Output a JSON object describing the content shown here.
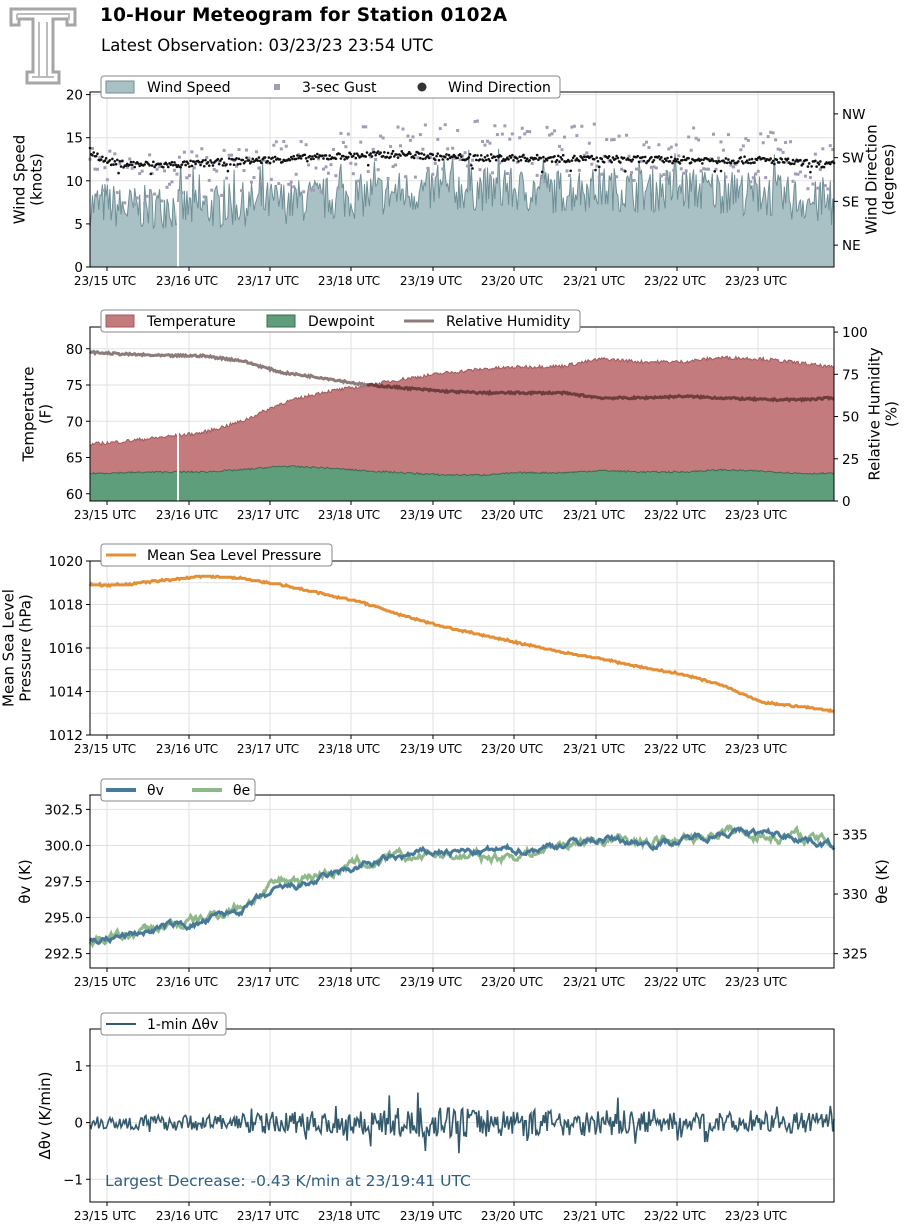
{
  "header": {
    "title": "10-Hour Meteogram for Station 0102A",
    "subtitle": "Latest Observation: 03/23/23 23:54 UTC",
    "logo_icon": "texas-tech-double-t-logo-icon"
  },
  "colors": {
    "wind_fill": "#a9c0c5",
    "wind_line": "#6f8f96",
    "gust": "#a39cb5",
    "direction": "#111111",
    "temperature_fill": "#c47b7d",
    "temperature_line": "#a0595c",
    "dewpoint_fill": "#5f9e7b",
    "dewpoint_line": "#3d6b50",
    "rh_line": "#8e7c7c",
    "rh_line_over_temp": "#6e3e3f",
    "pressure": "#e48f36",
    "theta_v": "#467a98",
    "theta_e": "#8fb98a",
    "dtheta": "#33596c",
    "annotation": "#2f5f7f",
    "grid": "#e2e2e2"
  },
  "shared_x": {
    "tick_labels": [
      "23/15 UTC",
      "23/16 UTC",
      "23/17 UTC",
      "23/18 UTC",
      "23/19 UTC",
      "23/20 UTC",
      "23/21 UTC",
      "23/22 UTC",
      "23/23 UTC"
    ],
    "range_hours": [
      14.6,
      23.9
    ]
  },
  "chart_data": [
    {
      "type": "area",
      "panel": "wind",
      "ylabel": [
        "Wind Speed",
        "(knots)"
      ],
      "y2label": [
        "Wind Direction",
        "(degrees)"
      ],
      "ylim": [
        0,
        20.3
      ],
      "yticks": [
        "0",
        "5",
        "10",
        "15",
        "20"
      ],
      "y2ticks": [
        "NE",
        "SE",
        "SW",
        "NW"
      ],
      "y2_range_degrees": [
        0,
        360
      ],
      "legend": [
        "Wind Speed",
        "3-sec Gust",
        "Wind Direction"
      ],
      "x_hours": [
        14.6,
        14.8,
        15.0,
        15.5,
        15.9,
        16.5,
        17.0,
        17.5,
        18.0,
        18.5,
        19.0,
        19.5,
        20.0,
        20.5,
        21.0,
        21.5,
        22.0,
        22.5,
        23.0,
        23.5,
        23.9
      ],
      "series": [
        {
          "name": "Wind Speed",
          "values": [
            6.8,
            7.2,
            6.5,
            6.8,
            6.5,
            7.0,
            7.3,
            7.6,
            8.0,
            8.4,
            8.7,
            8.8,
            8.6,
            8.5,
            8.9,
            8.6,
            8.8,
            8.5,
            8.2,
            7.5,
            6.8
          ]
        },
        {
          "name": "3-sec Gust",
          "values": [
            10.5,
            11.0,
            10.2,
            10.8,
            10.6,
            11.2,
            11.6,
            12.0,
            13.0,
            13.5,
            14.0,
            13.8,
            13.2,
            13.0,
            13.6,
            13.0,
            13.4,
            13.2,
            12.8,
            12.0,
            11.0
          ]
        },
        {
          "name": "Wind Direction",
          "values": [
            238,
            218,
            212,
            210,
            212,
            218,
            222,
            226,
            230,
            232,
            226,
            225,
            224,
            223,
            222,
            221,
            220,
            220,
            220,
            214,
            210
          ]
        }
      ]
    },
    {
      "type": "area",
      "panel": "temperature",
      "ylabel": [
        "Temperature",
        "(F)"
      ],
      "y2label": [
        "Relative Humidity",
        "(%)"
      ],
      "ylim": [
        59,
        83
      ],
      "y2lim": [
        0,
        103
      ],
      "yticks": [
        "60",
        "65",
        "70",
        "75",
        "80"
      ],
      "y2ticks": [
        "0",
        "25",
        "50",
        "75",
        "100"
      ],
      "legend": [
        "Temperature",
        "Dewpoint",
        "Relative Humidity"
      ],
      "x_hours": [
        14.6,
        15.0,
        15.5,
        16.0,
        16.5,
        17.0,
        17.5,
        18.0,
        18.5,
        19.0,
        19.5,
        20.0,
        20.5,
        21.0,
        21.5,
        22.0,
        22.5,
        23.0,
        23.5,
        23.9
      ],
      "series": [
        {
          "name": "Temperature",
          "values": [
            66.8,
            67.2,
            67.8,
            68.4,
            70.0,
            72.5,
            74.0,
            74.8,
            75.8,
            76.6,
            77.2,
            77.5,
            77.6,
            78.6,
            78.2,
            78.2,
            78.8,
            78.6,
            78.0,
            77.4
          ]
        },
        {
          "name": "Dewpoint",
          "values": [
            62.8,
            62.9,
            63.0,
            63.0,
            63.3,
            63.8,
            63.6,
            63.2,
            62.9,
            62.6,
            62.6,
            62.9,
            62.9,
            63.2,
            63.0,
            63.0,
            63.3,
            63.1,
            62.8,
            62.8
          ]
        },
        {
          "name": "Relative Humidity",
          "values": [
            88,
            87,
            86,
            86,
            83,
            76,
            73,
            69,
            67,
            65,
            64,
            64,
            64,
            61,
            61,
            62,
            61,
            60,
            60,
            61
          ]
        }
      ]
    },
    {
      "type": "line",
      "panel": "pressure",
      "ylabel": [
        "Mean Sea Level",
        "Pressure (hPa)"
      ],
      "ylim": [
        1012,
        1020
      ],
      "yticks": [
        "1012",
        "1014",
        "1016",
        "1018",
        "1020"
      ],
      "legend": [
        "Mean Sea Level Pressure"
      ],
      "x_hours": [
        14.6,
        15.0,
        15.5,
        16.0,
        16.5,
        17.0,
        17.5,
        18.0,
        18.5,
        19.0,
        19.5,
        20.0,
        20.5,
        21.0,
        21.5,
        22.0,
        22.5,
        23.0,
        23.5,
        23.9
      ],
      "series": [
        {
          "name": "Mean Sea Level Pressure",
          "values": [
            1018.9,
            1018.9,
            1019.1,
            1019.3,
            1019.2,
            1018.9,
            1018.5,
            1018.1,
            1017.5,
            1017.0,
            1016.6,
            1016.2,
            1015.8,
            1015.5,
            1015.1,
            1014.8,
            1014.3,
            1013.5,
            1013.3,
            1013.1
          ]
        }
      ]
    },
    {
      "type": "line",
      "panel": "theta",
      "ylabel": [
        "θv (K)"
      ],
      "y2label": [
        "θe (K)"
      ],
      "ylim": [
        291.5,
        303.5
      ],
      "y2lim": [
        323.8,
        338.3
      ],
      "yticks": [
        "292.5",
        "295.0",
        "297.5",
        "300.0",
        "302.5"
      ],
      "y2ticks": [
        "325",
        "330",
        "335"
      ],
      "legend": [
        "θv",
        "θe"
      ],
      "x_hours": [
        14.6,
        15.0,
        15.5,
        16.0,
        16.5,
        17.0,
        17.5,
        18.0,
        18.5,
        19.0,
        19.5,
        20.0,
        20.5,
        21.0,
        21.5,
        22.0,
        22.5,
        23.0,
        23.5,
        23.9
      ],
      "series": [
        {
          "name": "θv",
          "values": [
            293.3,
            293.7,
            294.3,
            294.6,
            295.6,
            296.9,
            297.6,
            298.6,
            299.2,
            299.6,
            299.5,
            299.7,
            300.1,
            300.5,
            300.2,
            300.3,
            301.0,
            300.8,
            300.6,
            300.0
          ]
        },
        {
          "name": "θe",
          "values": [
            325.8,
            326.3,
            327.2,
            327.8,
            329.2,
            331.0,
            331.8,
            332.5,
            332.9,
            333.4,
            333.0,
            333.4,
            334.2,
            334.6,
            334.3,
            334.4,
            335.4,
            335.0,
            334.8,
            334.2
          ]
        }
      ]
    },
    {
      "type": "line",
      "panel": "dtheta",
      "ylabel": [
        "Δθv (K/min)"
      ],
      "ylim": [
        -1.4,
        1.65
      ],
      "yticks": [
        "−1",
        "0",
        "1"
      ],
      "legend": [
        "1-min Δθv"
      ],
      "x_hours": [
        14.6,
        15.0,
        15.5,
        16.0,
        16.5,
        17.0,
        17.5,
        18.0,
        18.5,
        19.0,
        19.5,
        20.0,
        20.5,
        21.0,
        21.5,
        22.0,
        22.5,
        23.0,
        23.5,
        23.9
      ],
      "series": [
        {
          "name": "1-min Δθv envelope",
          "values": [
            0.12,
            0.12,
            0.14,
            0.14,
            0.16,
            0.2,
            0.2,
            0.24,
            0.26,
            0.28,
            0.26,
            0.24,
            0.24,
            0.24,
            0.2,
            0.18,
            0.18,
            0.18,
            0.18,
            0.16
          ]
        }
      ],
      "annotation": "Largest Decrease: -0.43 K/min at 23/19:41 UTC"
    }
  ]
}
